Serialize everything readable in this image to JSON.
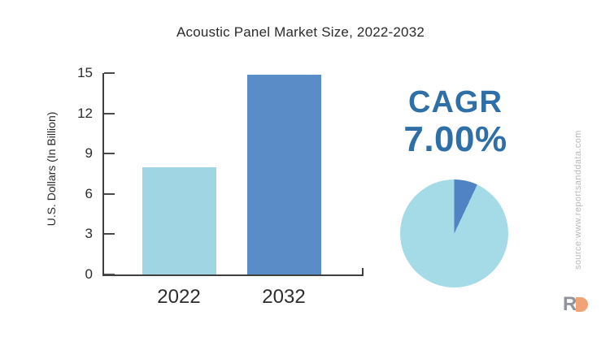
{
  "title": "Acoustic Panel Market Size, 2022-2032",
  "chart_data": [
    {
      "type": "bar",
      "title": "Acoustic Panel Market Size, 2022-2032",
      "categories": [
        "2022",
        "2032"
      ],
      "values": [
        8.0,
        14.9
      ],
      "bar_colors": [
        "#a0d6e4",
        "#5a8cc8"
      ],
      "xlabel": "",
      "ylabel": "U.S. Dollars (In Billion)",
      "ylim": [
        0,
        15
      ],
      "yticks": [
        0,
        3,
        6,
        9,
        12,
        15
      ],
      "grid": false,
      "legend_position": "none"
    },
    {
      "type": "pie",
      "title": "CAGR 7.00%",
      "values": [
        7,
        93
      ],
      "colors": [
        "#4f83c4",
        "#a5dae7"
      ],
      "start_angle_deg": 0,
      "direction": "clockwise"
    }
  ],
  "cagr": {
    "heading": "CAGR",
    "value": "7.00%",
    "color": "#2e6fa8"
  },
  "source_note": "source:www.reportsanddata.com",
  "logo": {
    "r": "R"
  }
}
